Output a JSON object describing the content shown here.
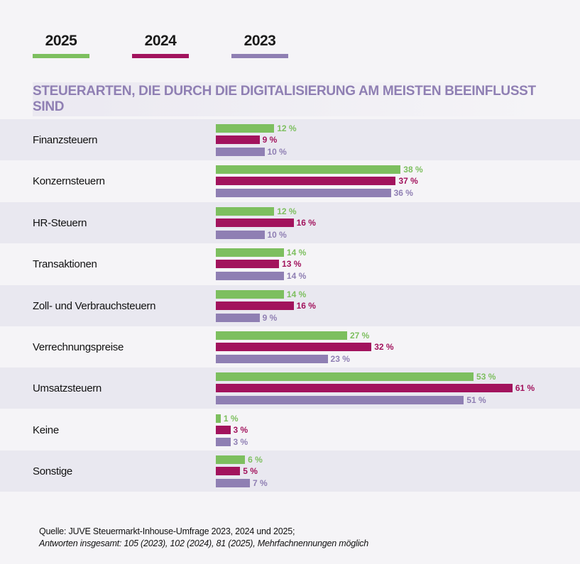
{
  "chart_data": {
    "type": "bar",
    "orientation": "horizontal",
    "title": "STEUERARTEN, DIE DURCH DIE DIGITALISIERUNG AM MEISTEN BEEINFLUSST SIND",
    "categories": [
      "Finanzsteuern",
      "Konzernsteuern",
      "HR-Steuern",
      "Transaktionen",
      "Zoll- und Verbrauchsteuern",
      "Verrechnungspreise",
      "Umsatzsteuern",
      "Keine",
      "Sonstige"
    ],
    "series": [
      {
        "name": "2025",
        "color": "#7dbf5f",
        "values": [
          12,
          38,
          12,
          14,
          14,
          27,
          53,
          1,
          6
        ]
      },
      {
        "name": "2024",
        "color": "#a2135d",
        "values": [
          9,
          37,
          16,
          13,
          16,
          32,
          61,
          3,
          5
        ]
      },
      {
        "name": "2023",
        "color": "#8f7fb3",
        "values": [
          10,
          36,
          10,
          14,
          9,
          23,
          51,
          3,
          7
        ]
      }
    ],
    "value_suffix": " %",
    "legend_position": "top-left",
    "grid": false
  },
  "colors": {
    "title": "#8f7fb3",
    "row_band": "#e9e8f0"
  },
  "footer": {
    "source": "Quelle: JUVE Steuermarkt-Inhouse-Umfrage 2023, 2024 und 2025;",
    "note": "Antworten insgesamt: 105 (2023), 102 (2024), 81 (2025), Mehrfachnennungen möglich"
  }
}
